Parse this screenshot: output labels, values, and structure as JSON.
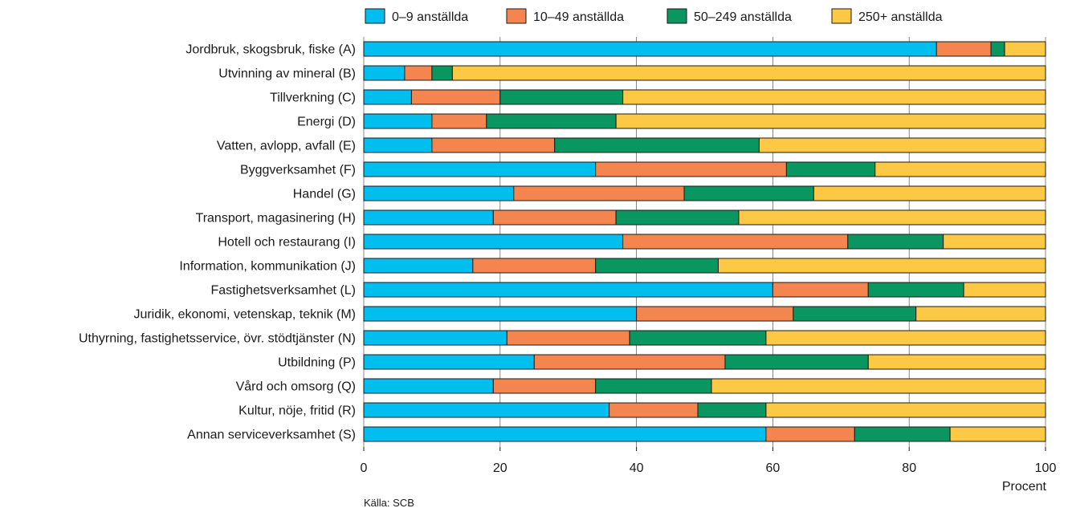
{
  "chart_data": {
    "type": "bar",
    "orientation": "horizontal",
    "stacked": true,
    "categories": [
      "Jordbruk, skogsbruk, fiske (A)",
      "Utvinning av mineral (B)",
      "Tillverkning (C)",
      "Energi (D)",
      "Vatten, avlopp, avfall (E)",
      "Byggverksamhet (F)",
      "Handel (G)",
      "Transport, magasinering (H)",
      "Hotell och restaurang (I)",
      "Information, kommunikation (J)",
      "Fastighetsverksamhet (L)",
      "Juridik, ekonomi, vetenskap, teknik (M)",
      "Uthyrning, fastighetsservice, övr. stödtjänster (N)",
      "Utbildning (P)",
      "Vård och omsorg (Q)",
      "Kultur, nöje, fritid (R)",
      "Annan serviceverksamhet (S)"
    ],
    "series": [
      {
        "name": "0–9 anställda",
        "color": "#00bfef",
        "values": [
          84,
          6,
          7,
          10,
          10,
          34,
          22,
          19,
          38,
          16,
          60,
          40,
          21,
          25,
          19,
          36,
          59
        ]
      },
      {
        "name": "10–49 anställda",
        "color": "#f4854f",
        "values": [
          8,
          4,
          13,
          8,
          18,
          28,
          25,
          18,
          33,
          18,
          14,
          23,
          18,
          28,
          15,
          13,
          13
        ]
      },
      {
        "name": "50–249 anställda",
        "color": "#0a9661",
        "values": [
          2,
          3,
          18,
          19,
          30,
          13,
          19,
          18,
          14,
          18,
          14,
          18,
          20,
          21,
          17,
          10,
          14
        ]
      },
      {
        "name": "250+ anställda",
        "color": "#fdc843",
        "values": [
          6,
          87,
          62,
          63,
          42,
          25,
          34,
          45,
          15,
          48,
          12,
          19,
          41,
          26,
          49,
          41,
          14
        ]
      }
    ],
    "xticks": [
      "0",
      "20",
      "40",
      "60",
      "80",
      "100"
    ],
    "xlim": [
      0,
      100
    ],
    "xlabel": "Procent",
    "source": "Källa: SCB",
    "grid": "vertical",
    "legend_position": "top"
  }
}
